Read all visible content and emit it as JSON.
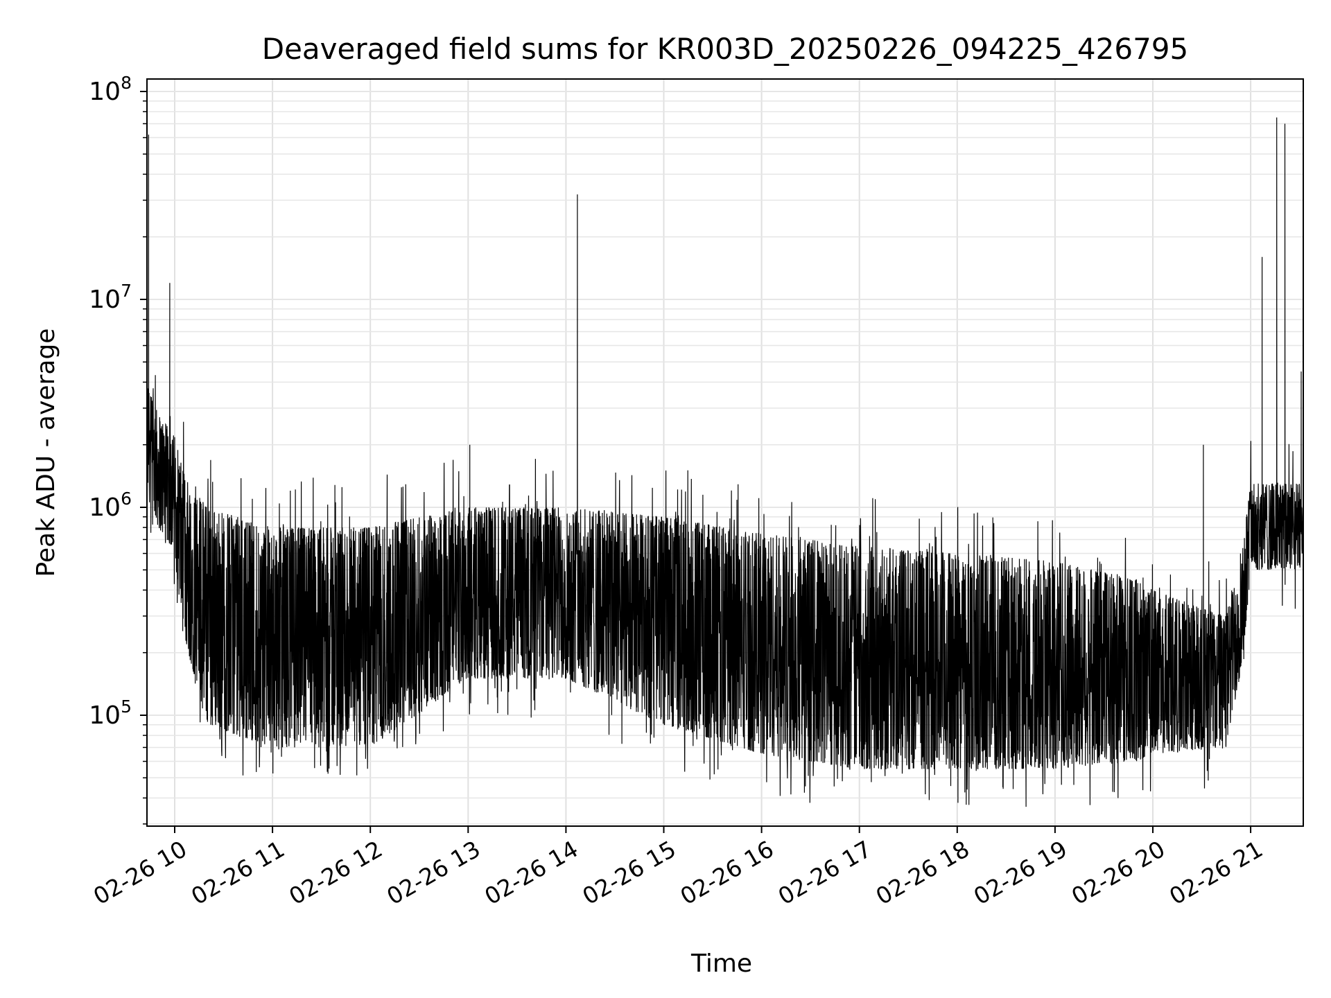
{
  "chart_data": {
    "type": "line",
    "title": "Deaveraged field sums for KR003D_20250226_094225_426795",
    "xlabel": "Time",
    "ylabel": "Peak ADU - average",
    "yscale": "log",
    "ylim": [
      30000,
      110000000
    ],
    "xlim": [
      "2025-02-26 09:42",
      "2025-02-26 21:00"
    ],
    "x_ticks": [
      {
        "value": "2025-02-26 10:00",
        "label": "02-26 10"
      },
      {
        "value": "2025-02-26 11:00",
        "label": "02-26 11"
      },
      {
        "value": "2025-02-26 12:00",
        "label": "02-26 12"
      },
      {
        "value": "2025-02-26 13:00",
        "label": "02-26 13"
      },
      {
        "value": "2025-02-26 14:00",
        "label": "02-26 14"
      },
      {
        "value": "2025-02-26 15:00",
        "label": "02-26 15"
      },
      {
        "value": "2025-02-26 16:00",
        "label": "02-26 16"
      },
      {
        "value": "2025-02-26 17:00",
        "label": "02-26 17"
      },
      {
        "value": "2025-02-26 18:00",
        "label": "02-26 18"
      },
      {
        "value": "2025-02-26 19:00",
        "label": "02-26 19"
      },
      {
        "value": "2025-02-26 20:00",
        "label": "02-26 20"
      },
      {
        "value": "2025-02-26 21:00",
        "label": "02-26 21"
      }
    ],
    "y_ticks": [
      {
        "value": 100000,
        "base": "10",
        "exp": "5"
      },
      {
        "value": 1000000,
        "base": "10",
        "exp": "6"
      },
      {
        "value": 10000000,
        "base": "10",
        "exp": "7"
      },
      {
        "value": 100000000,
        "base": "10",
        "exp": "8"
      }
    ],
    "grid": true,
    "line_color": "#000000",
    "series": [
      {
        "envelope": [
          {
            "t": "2025-02-26 09:42",
            "low": 1200000,
            "high": 4000000
          },
          {
            "t": "2025-02-26 09:50",
            "low": 800000,
            "high": 2800000
          },
          {
            "t": "2025-02-26 10:00",
            "low": 600000,
            "high": 2200000
          },
          {
            "t": "2025-02-26 10:05",
            "low": 250000,
            "high": 1500000
          },
          {
            "t": "2025-02-26 10:20",
            "low": 90000,
            "high": 1000000
          },
          {
            "t": "2025-02-26 11:00",
            "low": 70000,
            "high": 800000
          },
          {
            "t": "2025-02-26 12:00",
            "low": 70000,
            "high": 800000
          },
          {
            "t": "2025-02-26 13:00",
            "low": 150000,
            "high": 1000000
          },
          {
            "t": "2025-02-26 14:00",
            "low": 150000,
            "high": 1000000
          },
          {
            "t": "2025-02-26 15:00",
            "low": 90000,
            "high": 900000
          },
          {
            "t": "2025-02-26 16:00",
            "low": 65000,
            "high": 750000
          },
          {
            "t": "2025-02-26 17:00",
            "low": 55000,
            "high": 650000
          },
          {
            "t": "2025-02-26 18:00",
            "low": 55000,
            "high": 600000
          },
          {
            "t": "2025-02-26 19:00",
            "low": 55000,
            "high": 550000
          },
          {
            "t": "2025-02-26 19:50",
            "low": 60000,
            "high": 450000
          },
          {
            "t": "2025-02-26 20:00",
            "low": 65000,
            "high": 400000
          },
          {
            "t": "2025-02-26 20:45",
            "low": 70000,
            "high": 300000
          },
          {
            "t": "2025-02-26 20:55",
            "low": 180000,
            "high": 700000
          },
          {
            "t": "2025-02-26 21:00",
            "low": 500000,
            "high": 1300000
          },
          {
            "t": "2025-02-26 21:30",
            "low": 500000,
            "high": 1300000
          },
          {
            "t": "2025-02-26 21:33",
            "low": 650000,
            "high": 1100000
          }
        ],
        "spikes": [
          {
            "t": "2025-02-26 09:43",
            "value": 50000000
          },
          {
            "t": "2025-02-26 09:44",
            "value": 62000000
          },
          {
            "t": "2025-02-26 09:57",
            "value": 12000000
          },
          {
            "t": "2025-02-26 13:01",
            "value": 2000000
          },
          {
            "t": "2025-02-26 14:07",
            "value": 32000000
          },
          {
            "t": "2025-02-26 20:31",
            "value": 2000000
          },
          {
            "t": "2025-02-26 21:07",
            "value": 16000000
          },
          {
            "t": "2025-02-26 21:16",
            "value": 75000000
          },
          {
            "t": "2025-02-26 21:21",
            "value": 70000000
          },
          {
            "t": "2025-02-26 21:31",
            "value": 4500000
          }
        ]
      }
    ]
  }
}
